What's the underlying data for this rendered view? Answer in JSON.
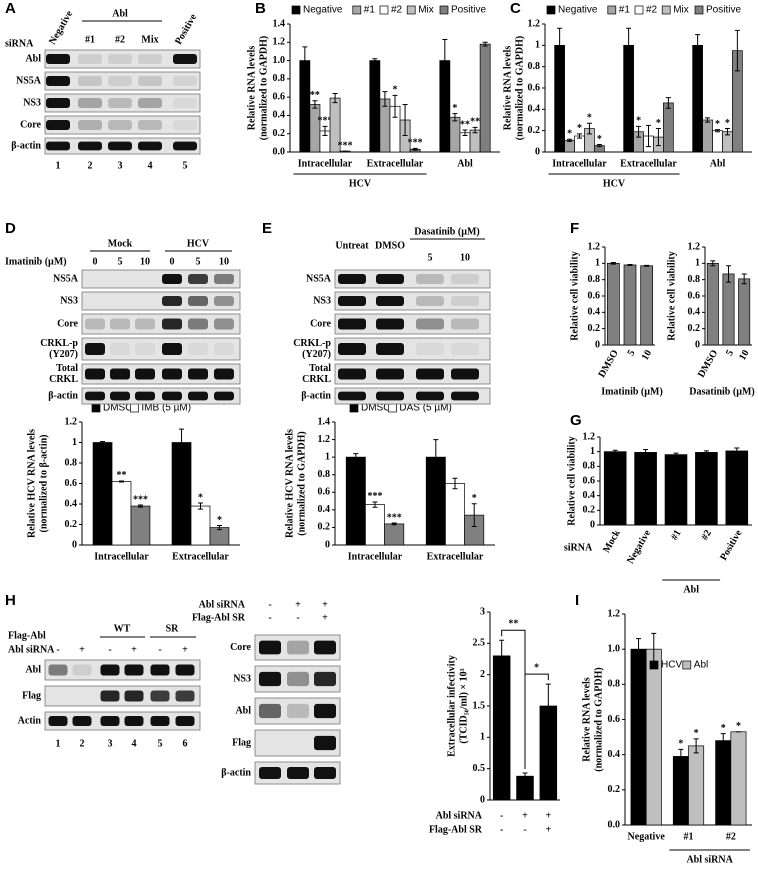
{
  "panel_labels": [
    "A",
    "B",
    "C",
    "D",
    "E",
    "F",
    "G",
    "H",
    "I"
  ],
  "blots": {
    "A": {
      "header": "siRNA",
      "columns": [
        "Negative",
        "Abl",
        "#1",
        "#2",
        "Mix",
        "Positive"
      ],
      "rows": [
        [
          "Abl"
        ],
        [
          "NS5A"
        ],
        [
          "NS3"
        ],
        [
          "Core"
        ],
        [
          "β-actin"
        ]
      ],
      "lanes": [
        "1",
        "2",
        "3",
        "4",
        "5"
      ]
    },
    "D": {
      "treatment": "Imatinib (µM)",
      "groups": [
        "Mock",
        "HCV"
      ],
      "doses": [
        "0",
        "5",
        "10",
        "0",
        "5",
        "10"
      ],
      "rows": [
        [
          "NS5A"
        ],
        [
          "NS3"
        ],
        [
          "Core"
        ],
        [
          "CRKL-p",
          "(Y207)"
        ],
        [
          "Total",
          "CRKL"
        ],
        [
          "β-actin"
        ]
      ]
    },
    "E": {
      "columns": [
        "Untreat",
        "DMSO"
      ],
      "treatment": "Dasatinib (µM)",
      "doses": [
        "5",
        "10"
      ],
      "rows": [
        [
          "NS5A"
        ],
        [
          "NS3"
        ],
        [
          "Core"
        ],
        [
          "CRKL-p",
          "(Y207)"
        ],
        [
          "Total",
          "CRKL"
        ],
        [
          "β-actin"
        ]
      ]
    },
    "H_left": {
      "label": "Flag-Abl",
      "groups": [
        "WT",
        "SR"
      ],
      "condition": "Abl siRNA",
      "marks": [
        "-",
        "+",
        "-",
        "+",
        "-",
        "+"
      ],
      "rows": [
        [
          "Abl"
        ],
        [
          "Flag"
        ],
        [
          "Actin"
        ]
      ],
      "lanes": [
        "1",
        "2",
        "3",
        "4",
        "5",
        "6"
      ]
    },
    "H_mid": {
      "conditions": [
        {
          "name": "Abl siRNA",
          "marks": [
            "-",
            "+",
            "+"
          ]
        },
        {
          "name": "Flag-Abl SR",
          "marks": [
            "-",
            "-",
            "+"
          ]
        }
      ],
      "rows": [
        [
          "Core"
        ],
        [
          "NS3"
        ],
        [
          "Abl"
        ],
        [
          "Flag"
        ],
        [
          "β-actin"
        ]
      ]
    }
  },
  "chart_data": [
    {
      "type": "bar",
      "ylabel": [
        "Relative RNA levels",
        "(normalized to GAPDH)"
      ],
      "categories": [
        "Intracellular",
        "Extracellular",
        "Abl"
      ],
      "group_label": "HCV",
      "series": [
        {
          "name": "Negative",
          "color": "#000000",
          "values": [
            1.0,
            1.0,
            1.0
          ],
          "errors": [
            0.15,
            0.02,
            0.23
          ]
        },
        {
          "name": "#1",
          "color": "#a6a6a6",
          "values": [
            0.52,
            0.58,
            0.38
          ],
          "errors": [
            0.04,
            0.08,
            0.04
          ],
          "stars": [
            "**",
            null,
            "*"
          ]
        },
        {
          "name": "#2",
          "color": "#ffffff",
          "values": [
            0.23,
            0.5,
            0.21
          ],
          "errors": [
            0.05,
            0.12,
            0.03
          ],
          "stars": [
            "***",
            "*",
            "**"
          ]
        },
        {
          "name": "Mix",
          "color": "#bfbfbf",
          "values": [
            0.59,
            0.35,
            0.24
          ],
          "errors": [
            0.05,
            0.17,
            0.03
          ],
          "stars": [
            null,
            null,
            "**"
          ]
        },
        {
          "name": "Positive",
          "color": "#7f7f7f",
          "values": [
            0.01,
            0.03,
            1.18
          ],
          "errors": [
            0.0,
            0.01,
            0.02
          ],
          "stars": [
            "***",
            "***",
            null
          ]
        }
      ],
      "ylim": [
        0,
        1.4
      ],
      "yticks": [
        {
          "value": 0,
          "label": "0.0"
        },
        0.2,
        0.4,
        0.6,
        0.8,
        {
          "value": 1,
          "label": "1.0"
        },
        1.2,
        1.4
      ]
    },
    {
      "type": "bar",
      "ylabel": [
        "Relative RNA levels",
        "(normalized to GAPDH)"
      ],
      "categories": [
        "Intracellular",
        "Extracellular",
        "Abl"
      ],
      "group_label": "HCV",
      "series": [
        {
          "name": "Negative",
          "color": "#000000",
          "values": [
            1.0,
            1.0,
            1.0
          ],
          "errors": [
            0.16,
            0.16,
            0.1
          ]
        },
        {
          "name": "#1",
          "color": "#a6a6a6",
          "values": [
            0.11,
            0.19,
            0.3
          ],
          "errors": [
            0.01,
            0.05,
            0.02
          ],
          "stars": [
            "*",
            "*",
            null
          ]
        },
        {
          "name": "#2",
          "color": "#ffffff",
          "values": [
            0.15,
            0.15,
            0.2
          ],
          "errors": [
            0.02,
            0.1,
            0.01
          ],
          "stars": [
            "*",
            null,
            "*"
          ]
        },
        {
          "name": "Mix",
          "color": "#bfbfbf",
          "values": [
            0.22,
            0.14,
            0.19
          ],
          "errors": [
            0.05,
            0.08,
            0.03
          ],
          "stars": [
            "*",
            "*",
            "*"
          ]
        },
        {
          "name": "Positive",
          "color": "#7f7f7f",
          "values": [
            0.06,
            0.46,
            0.95
          ],
          "errors": [
            0.01,
            0.05,
            0.19
          ],
          "stars": [
            "*",
            null,
            null
          ]
        }
      ],
      "ylim": [
        0,
        1.2
      ],
      "yticks": [
        0,
        0.2,
        0.4,
        0.6,
        0.8,
        1,
        1.2
      ]
    },
    {
      "type": "bar",
      "ylabel": [
        "Relative HCV RNA levels",
        "(normalized to β-actin)"
      ],
      "categories": [
        "Intracellular",
        "Extracellular"
      ],
      "series": [
        {
          "name": "DMSO",
          "color": "#000000",
          "values": [
            1.0,
            1.0
          ],
          "errors": [
            0.01,
            0.13
          ]
        },
        {
          "name": "IMB (5 µM)",
          "color": "#ffffff",
          "values": [
            0.62,
            0.38
          ],
          "errors": [
            0.005,
            0.03
          ],
          "stars": [
            "**",
            "*"
          ]
        },
        {
          "color": "#808080",
          "values": [
            0.38,
            0.17
          ],
          "errors": [
            0.01,
            0.02
          ],
          "stars": [
            "***",
            "*"
          ]
        }
      ],
      "ylim": [
        0,
        1.2
      ],
      "yticks": [
        0,
        0.2,
        0.4,
        0.6,
        0.8,
        1,
        1.2
      ]
    },
    {
      "type": "bar",
      "ylabel": [
        "Relative HCV RNA levels",
        "(normalized to GAPDH)"
      ],
      "categories": [
        "Intracellular",
        "Extracellular"
      ],
      "series": [
        {
          "name": "DMSO",
          "color": "#000000",
          "values": [
            1.0,
            1.0
          ],
          "errors": [
            0.04,
            0.2
          ]
        },
        {
          "name": "DAS (5 µM)",
          "color": "#ffffff",
          "values": [
            0.46,
            0.7
          ],
          "errors": [
            0.03,
            0.06
          ],
          "stars": [
            "***",
            null
          ]
        },
        {
          "color": "#808080",
          "values": [
            0.24,
            0.34
          ],
          "errors": [
            0.01,
            0.13
          ],
          "stars": [
            "***",
            "*"
          ]
        }
      ],
      "ylim": [
        0,
        1.4
      ],
      "yticks": [
        0,
        0.2,
        0.4,
        0.6,
        0.8,
        1,
        1.2,
        1.4
      ]
    },
    {
      "type": "bar",
      "ylabel": [
        "Relative cell viability"
      ],
      "xlabel": "Imatinib (µM)",
      "categories": [
        "DMSO",
        "5",
        "10"
      ],
      "values": [
        1.0,
        0.98,
        0.97
      ],
      "errors": [
        0.01,
        0.005,
        0.005
      ],
      "color": "#808080",
      "ylim": [
        0,
        1.2
      ],
      "yticks": [
        0,
        0.2,
        0.4,
        0.6,
        0.8,
        1,
        1.2
      ]
    },
    {
      "type": "bar",
      "ylabel": [
        "Relative cell viability"
      ],
      "xlabel": "Dasatinib (µM)",
      "categories": [
        "DMSO",
        "5",
        "10"
      ],
      "values": [
        1.0,
        0.87,
        0.81
      ],
      "errors": [
        0.03,
        0.1,
        0.06
      ],
      "color": "#808080",
      "ylim": [
        0,
        1.2
      ],
      "yticks": [
        0,
        0.2,
        0.4,
        0.6,
        0.8,
        1,
        1.2
      ]
    },
    {
      "type": "bar",
      "ylabel": [
        "Relative cell viability"
      ],
      "xlabel": "siRNA",
      "group_label": "Abl",
      "categories": [
        "Mock",
        "Negative",
        "#1",
        "#2",
        "Positive"
      ],
      "values": [
        1.0,
        0.99,
        0.96,
        0.99,
        1.01
      ],
      "errors": [
        0.02,
        0.04,
        0.02,
        0.02,
        0.04
      ],
      "color": "#000000",
      "ylim": [
        0,
        1.2
      ],
      "yticks": [
        0,
        0.2,
        0.4,
        0.6,
        0.8,
        1,
        1.2
      ]
    },
    {
      "type": "bar",
      "ylabel": [
        "Extracellular infectivity",
        "(TCID₅₀/ml) × 10³"
      ],
      "values": [
        2.3,
        0.38,
        1.5
      ],
      "errors": [
        0.25,
        0.05,
        0.35
      ],
      "color": "#000000",
      "brackets": [
        "**",
        "*"
      ],
      "conditions": [
        {
          "name": "Abl siRNA",
          "marks": [
            "-",
            "+",
            "+"
          ]
        },
        {
          "name": "Flag-Abl SR",
          "marks": [
            "-",
            "-",
            "+"
          ]
        }
      ],
      "ylim": [
        0,
        3
      ],
      "yticks": [
        0,
        0.5,
        1,
        1.5,
        2,
        2.5,
        3
      ]
    },
    {
      "type": "bar",
      "ylabel": [
        "Relative RNA levels",
        "(normalized to GAPDH)"
      ],
      "categories": [
        "Negative",
        "#1",
        "#2"
      ],
      "group_label": "Abl siRNA",
      "series": [
        {
          "name": "HCV",
          "color": "#000000",
          "values": [
            1.0,
            0.39,
            0.48
          ],
          "errors": [
            0.06,
            0.04,
            0.04
          ],
          "stars": [
            null,
            "*",
            "*"
          ]
        },
        {
          "name": "Abl",
          "color": "#bfbfbf",
          "values": [
            1.0,
            0.45,
            0.53
          ],
          "errors": [
            0.09,
            0.04,
            0.0
          ],
          "stars": [
            null,
            "*",
            "*"
          ]
        }
      ],
      "ylim": [
        0,
        1.2
      ],
      "yticks": [
        {
          "value": 0,
          "label": "0.0"
        },
        0.2,
        0.4,
        0.6,
        0.8,
        {
          "value": 1,
          "label": "1.0"
        },
        1.2
      ]
    }
  ]
}
